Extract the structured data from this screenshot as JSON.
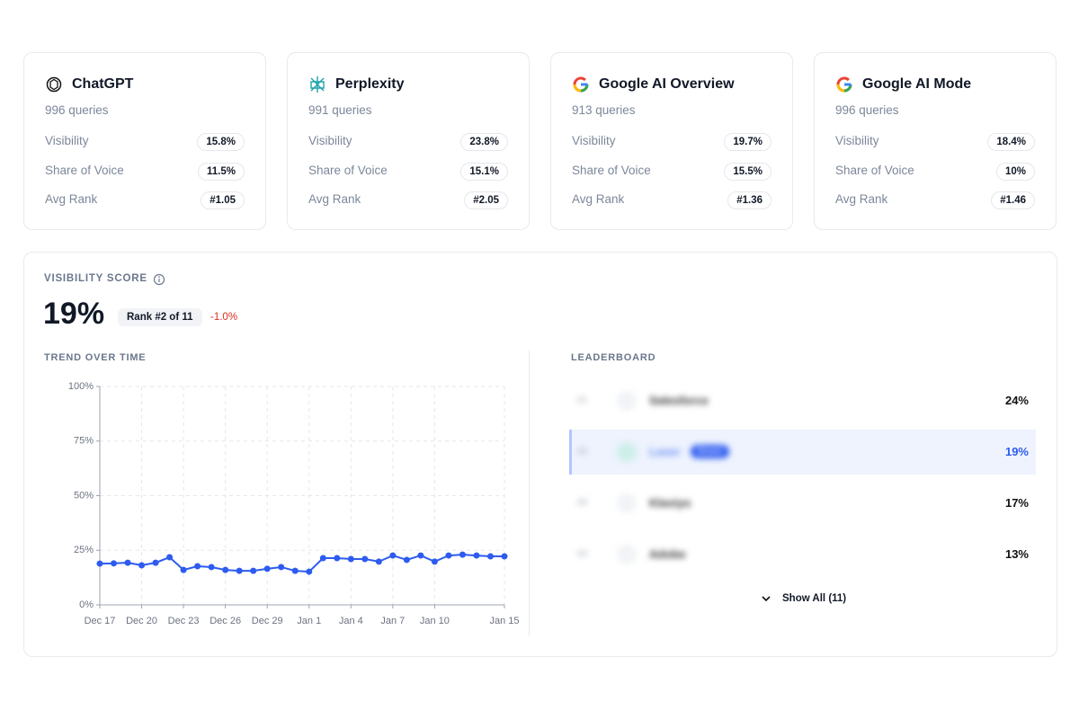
{
  "cards": [
    {
      "name": "ChatGPT",
      "queries": "996 queries",
      "metrics": [
        {
          "label": "Visibility",
          "value": "15.8%"
        },
        {
          "label": "Share of Voice",
          "value": "11.5%"
        },
        {
          "label": "Avg Rank",
          "value": "#1.05"
        }
      ]
    },
    {
      "name": "Perplexity",
      "queries": "991 queries",
      "metrics": [
        {
          "label": "Visibility",
          "value": "23.8%"
        },
        {
          "label": "Share of Voice",
          "value": "15.1%"
        },
        {
          "label": "Avg Rank",
          "value": "#2.05"
        }
      ]
    },
    {
      "name": "Google AI Overview",
      "queries": "913 queries",
      "metrics": [
        {
          "label": "Visibility",
          "value": "19.7%"
        },
        {
          "label": "Share of Voice",
          "value": "15.5%"
        },
        {
          "label": "Avg Rank",
          "value": "#1.36"
        }
      ]
    },
    {
      "name": "Google AI Mode",
      "queries": "996 queries",
      "metrics": [
        {
          "label": "Visibility",
          "value": "18.4%"
        },
        {
          "label": "Share of Voice",
          "value": "10%"
        },
        {
          "label": "Avg Rank",
          "value": "#1.46"
        }
      ]
    }
  ],
  "visibility": {
    "title": "VISIBILITY SCORE",
    "score": "19%",
    "rank": "Rank #2 of 11",
    "change": "-1.0%"
  },
  "chart_data": {
    "type": "line",
    "title": "TREND OVER TIME",
    "categories": [
      "Dec 17",
      null,
      null,
      "Dec 20",
      null,
      null,
      "Dec 23",
      null,
      null,
      "Dec 26",
      null,
      null,
      "Dec 29",
      null,
      null,
      "Jan 1",
      null,
      null,
      "Jan 4",
      null,
      null,
      "Jan 7",
      null,
      null,
      "Jan 10",
      null,
      null,
      null,
      null,
      "Jan 15"
    ],
    "values": [
      18.9,
      19,
      19.3,
      18.1,
      19.3,
      21.8,
      16,
      17.7,
      17.3,
      16,
      15.6,
      15.6,
      16.5,
      17.3,
      15.6,
      15.2,
      21.4,
      21.4,
      21,
      21,
      19.8,
      22.6,
      20.6,
      22.6,
      19.8,
      22.6,
      23,
      22.6,
      22.2,
      22.2
    ],
    "color": "#2d5bf0",
    "ylim": [
      0,
      100
    ],
    "yticks": [
      {
        "value": 0,
        "label": "0%"
      },
      {
        "value": 25,
        "label": "25%"
      },
      {
        "value": 50,
        "label": "50%"
      },
      {
        "value": 75,
        "label": "75%"
      },
      {
        "value": 100,
        "label": "100%"
      }
    ],
    "grid": true
  },
  "leaderboard": {
    "title": "LEADERBOARD",
    "badge": "Brand",
    "rows": [
      {
        "rank": "#1",
        "name": "Salesforce",
        "value": "24%"
      },
      {
        "rank": "#2",
        "name": "Laser",
        "value": "19%"
      },
      {
        "rank": "#3",
        "name": "Klaviyo",
        "value": "17%"
      },
      {
        "rank": "#4",
        "name": "Adobe",
        "value": "13%"
      }
    ],
    "show_all": "Show All (11)"
  }
}
